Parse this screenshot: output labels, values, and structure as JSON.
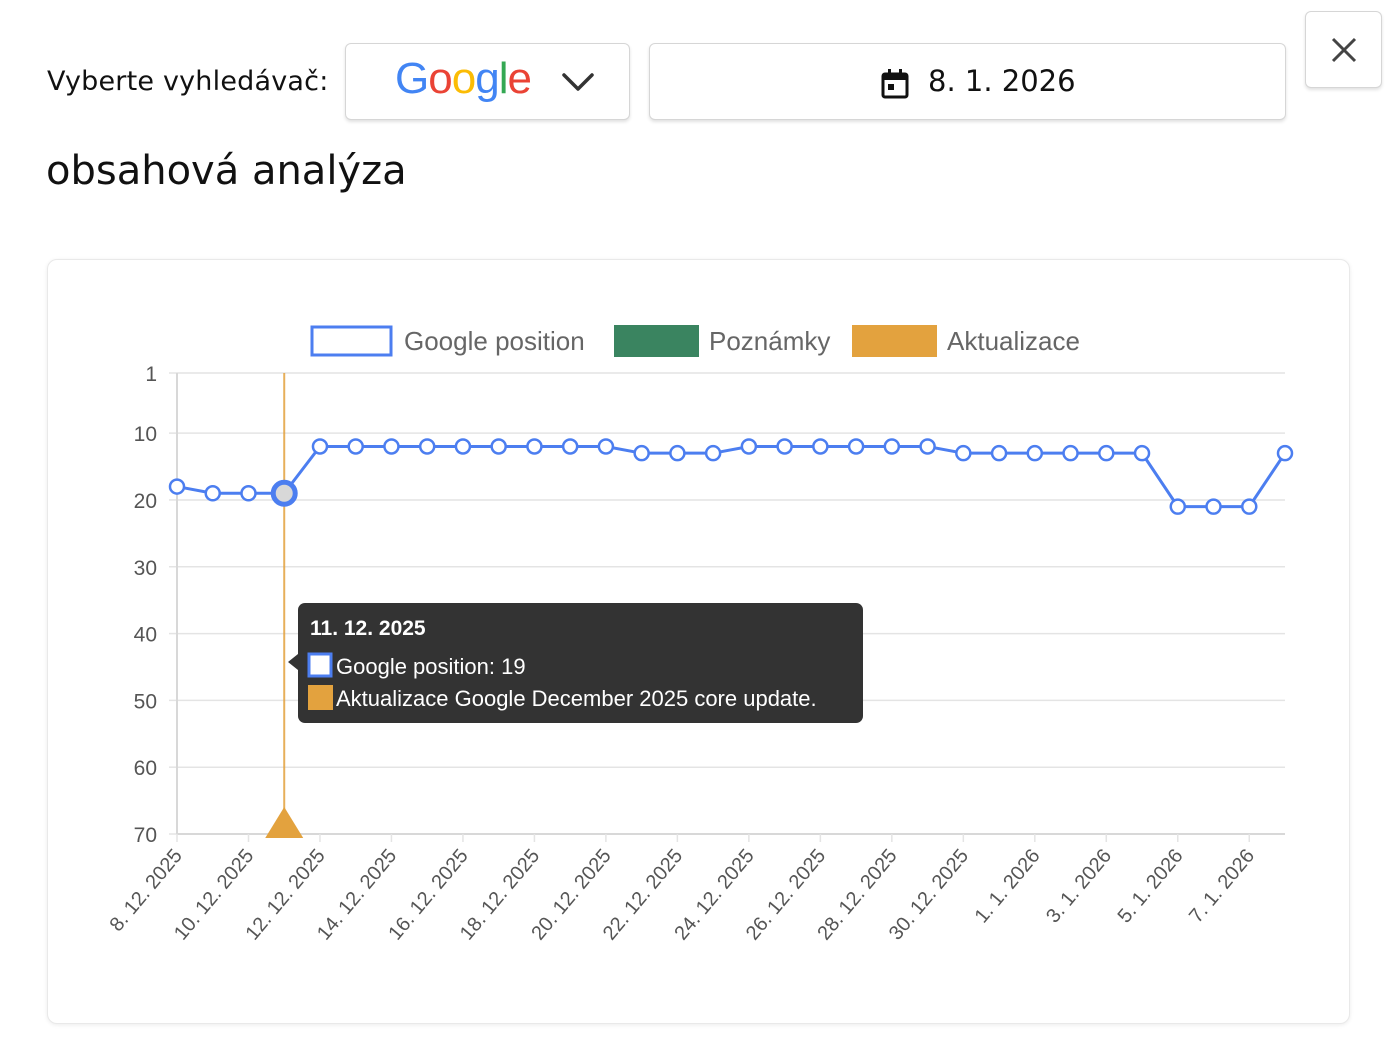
{
  "header": {
    "engine_label": "Vyberte vyhledávač:",
    "engine_selected": "Google",
    "engine_icon": "chevron-down-icon",
    "date_icon": "calendar-icon",
    "date_value": "8. 1. 2026",
    "close_icon": "close-icon"
  },
  "page": {
    "title": "obsahová analýza"
  },
  "colors": {
    "series": "#4c7ef0",
    "notes": "#3a8460",
    "updates": "#e3a23e",
    "tooltip_bg": "#333333",
    "google_blue": "#4285F4",
    "google_red": "#EA4335",
    "google_yellow": "#FBBC05",
    "google_green": "#34A853"
  },
  "chart_data": {
    "type": "line",
    "legend": [
      "Google position",
      "Poznámky",
      "Aktualizace"
    ],
    "legend_placement": "top-center",
    "y_reversed": true,
    "ylim": [
      1,
      70
    ],
    "y_ticks": [
      1,
      10,
      20,
      30,
      40,
      50,
      60,
      70
    ],
    "grid": true,
    "x": [
      "8. 12. 2025",
      "9. 12. 2025",
      "10. 12. 2025",
      "11. 12. 2025",
      "12. 12. 2025",
      "13. 12. 2025",
      "14. 12. 2025",
      "15. 12. 2025",
      "16. 12. 2025",
      "17. 12. 2025",
      "18. 12. 2025",
      "19. 12. 2025",
      "20. 12. 2025",
      "21. 12. 2025",
      "22. 12. 2025",
      "23. 12. 2025",
      "24. 12. 2025",
      "25. 12. 2025",
      "26. 12. 2025",
      "27. 12. 2025",
      "28. 12. 2025",
      "29. 12. 2025",
      "30. 12. 2025",
      "31. 12. 2025",
      "1. 1. 2026",
      "2. 1. 2026",
      "3. 1. 2026",
      "4. 1. 2026",
      "5. 1. 2026",
      "6. 1. 2026",
      "7. 1. 2026",
      "8. 1. 2026"
    ],
    "x_tick_labels": [
      "8. 12. 2025",
      "10. 12. 2025",
      "12. 12. 2025",
      "14. 12. 2025",
      "16. 12. 2025",
      "18. 12. 2025",
      "20. 12. 2025",
      "22. 12. 2025",
      "24. 12. 2025",
      "26. 12. 2025",
      "28. 12. 2025",
      "30. 12. 2025",
      "1. 1. 2026",
      "3. 1. 2026",
      "5. 1. 2026",
      "7. 1. 2026"
    ],
    "series": [
      {
        "name": "Google position",
        "values": [
          18,
          19,
          19,
          19,
          12,
          12,
          12,
          12,
          12,
          12,
          12,
          12,
          12,
          13,
          13,
          13,
          12,
          12,
          12,
          12,
          12,
          12,
          13,
          13,
          13,
          13,
          13,
          13,
          21,
          21,
          21,
          13
        ]
      }
    ],
    "updates": [
      {
        "date": "11. 12. 2025",
        "label": "Aktualizace Google December 2025 core update."
      }
    ],
    "highlight_index": 3,
    "tooltip": {
      "title": "11. 12. 2025",
      "lines": [
        {
          "text": "Google position: 19",
          "swatch": "series"
        },
        {
          "text": "Aktualizace Google December 2025 core update.",
          "swatch": "updates"
        }
      ]
    }
  }
}
